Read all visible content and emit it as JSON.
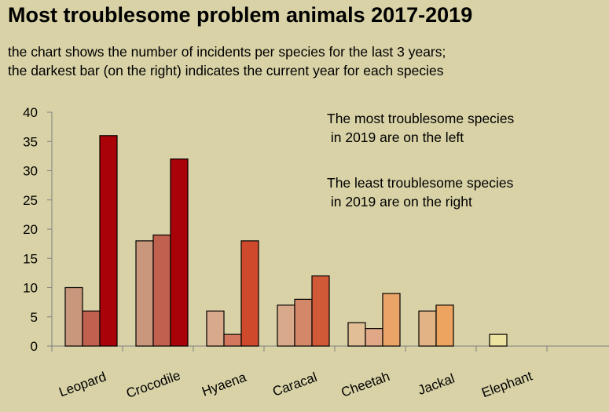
{
  "title": "Most troublesome problem animals 2017-2019",
  "subtitle_lines": [
    "the chart shows the number of incidents per species for the last 3 years;",
    "the darkest bar (on the right) indicates the current year for each species"
  ],
  "annotations": [
    {
      "lines": [
        "The most troublesome species",
        " in 2019 are on the left"
      ]
    },
    {
      "lines": [
        "The least troublesome species",
        " in 2019 are on the right"
      ]
    }
  ],
  "chart_data": {
    "type": "bar",
    "categories": [
      "Leopard",
      "Crocodile",
      "Hyaena",
      "Caracal",
      "Cheetah",
      "Jackal",
      "Elephant"
    ],
    "values_by_category": [
      [
        10,
        6,
        36
      ],
      [
        18,
        19,
        32
      ],
      [
        6,
        2,
        18
      ],
      [
        7,
        8,
        12
      ],
      [
        4,
        3,
        9
      ],
      [
        6,
        7
      ],
      [
        2
      ]
    ],
    "colors_by_category": [
      [
        "#c8977c",
        "#c0604e",
        "#a90208"
      ],
      [
        "#c8977c",
        "#c0604e",
        "#a90208"
      ],
      [
        "#d8a98a",
        "#d3785e",
        "#cf4a2d"
      ],
      [
        "#d8a98a",
        "#d3886a",
        "#d05a38"
      ],
      [
        "#e1be95",
        "#e1a888",
        "#eba468"
      ],
      [
        "#e2b385",
        "#eda460"
      ],
      [
        "#ece3a0"
      ]
    ],
    "ylim": [
      0,
      40
    ],
    "yticks": [
      0,
      5,
      10,
      15,
      20,
      25,
      30,
      35,
      40
    ],
    "grid": false,
    "xlabel": "",
    "ylabel": ""
  }
}
